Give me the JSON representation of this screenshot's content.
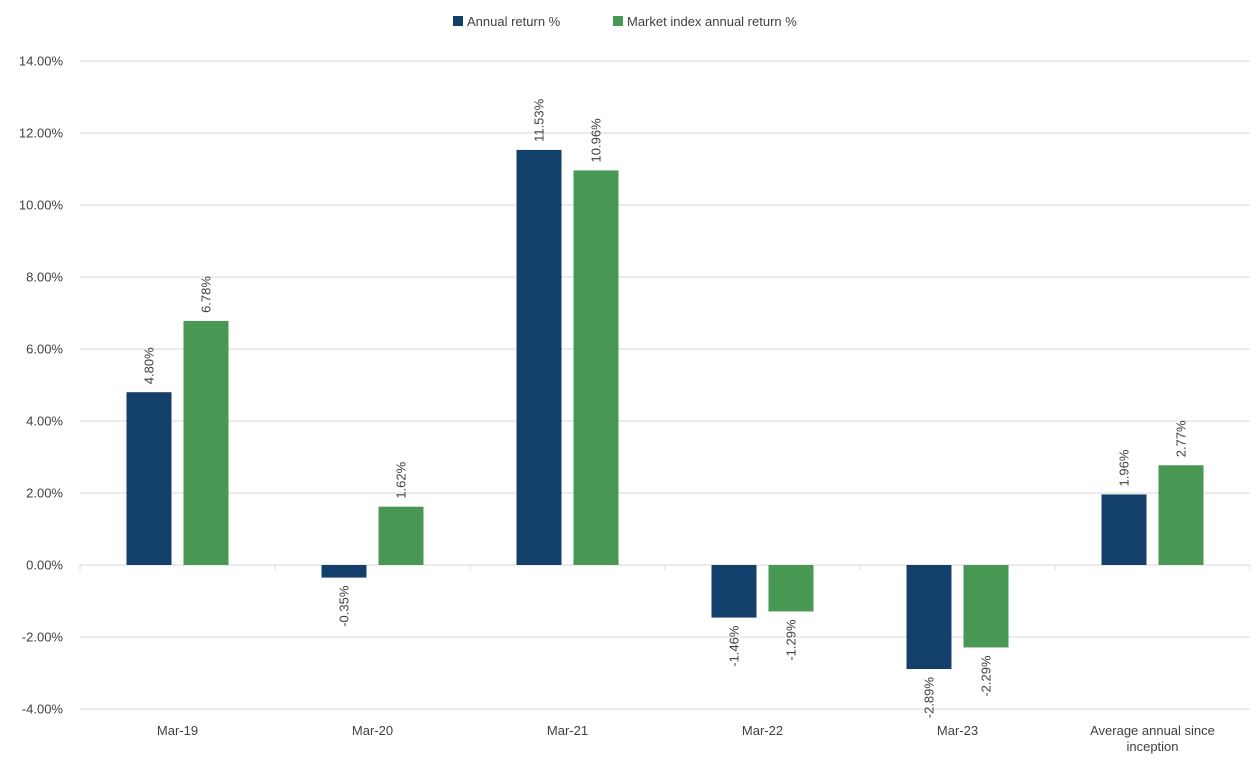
{
  "chart_data": {
    "type": "bar",
    "categories": [
      "Mar-19",
      "Mar-20",
      "Mar-21",
      "Mar-22",
      "Mar-23",
      "Average annual since inception"
    ],
    "series": [
      {
        "name": "Annual return %",
        "color": "#133f6b",
        "values": [
          4.8,
          -0.35,
          11.53,
          -1.46,
          -2.89,
          1.96
        ],
        "labels": [
          "4.80%",
          "-0.35%",
          "11.53%",
          "-1.46%",
          "-2.89%",
          "1.96%"
        ]
      },
      {
        "name": "Market index annual return %",
        "color": "#489752",
        "values": [
          6.78,
          1.62,
          10.96,
          -1.29,
          -2.29,
          2.77
        ],
        "labels": [
          "6.78%",
          "1.62%",
          "10.96%",
          "-1.29%",
          "-2.29%",
          "2.77%"
        ]
      }
    ],
    "ylim": [
      -4,
      14
    ],
    "yticks": [
      -4,
      -2,
      0,
      2,
      4,
      6,
      8,
      10,
      12,
      14
    ],
    "ytick_labels": [
      "-4.00%",
      "-2.00%",
      "0.00%",
      "2.00%",
      "4.00%",
      "6.00%",
      "8.00%",
      "10.00%",
      "12.00%",
      "14.00%"
    ],
    "grid": true,
    "legend_position": "top-center",
    "category_label_lines": [
      [
        "Mar-19"
      ],
      [
        "Mar-20"
      ],
      [
        "Mar-21"
      ],
      [
        "Mar-22"
      ],
      [
        "Mar-23"
      ],
      [
        "Average annual since",
        "inception"
      ]
    ]
  }
}
